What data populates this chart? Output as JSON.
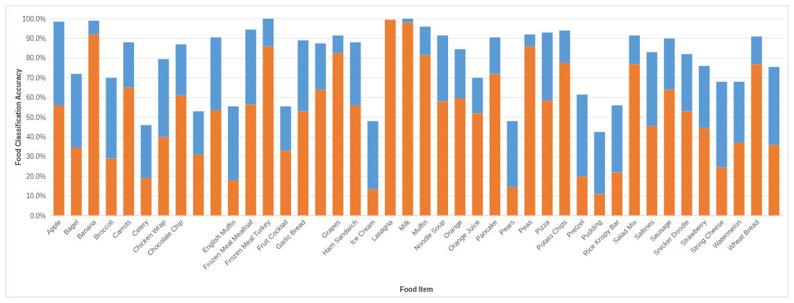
{
  "chart_data": {
    "type": "bar",
    "stacked": true,
    "xlabel": "Food Item",
    "ylabel": "Food Classification Accuracy",
    "categories": [
      "Apple",
      "Bagel",
      "Banana",
      "Broccoli",
      "Carrots",
      "Celery",
      "Chicken Wrap",
      "Chocolate Chip",
      null,
      null,
      "English Muffin",
      "Frozen Meal Meatloaf",
      "Frozen Meal Turkey",
      "Fruit Cocktail",
      "Garlic Bread",
      null,
      "Grapes",
      "Ham Sandwich",
      "Ice Cream",
      "Lasagna",
      "Milk",
      "Muffin",
      "Noodle Soup",
      "Orange",
      "Orange Juice",
      "Pancake",
      "Pears",
      "Peas",
      "Pizza",
      "Potato Chips",
      "Pretzel",
      "Pudding",
      "Rice Krispy Bar",
      "Salad Mix",
      "Saltines",
      "Sausage",
      "Snicker Doodle",
      "Strawberry",
      "String Cheese",
      "Watermelon",
      "Wheat Bread",
      null
    ],
    "series": [
      {
        "color": "#ed7d31",
        "values": [
          56,
          34.5,
          92,
          29,
          65,
          19,
          40,
          61,
          31,
          53.5,
          18,
          56.5,
          86,
          33,
          53,
          64,
          82.5,
          56,
          13.5,
          99.5,
          98,
          81.5,
          58,
          59.5,
          52,
          72,
          14.5,
          86,
          58.5,
          77.5,
          20,
          11,
          22,
          77,
          45.5,
          64,
          53,
          44.5,
          24.5,
          37,
          77,
          36
        ]
      },
      {
        "color": "#5b9bd5",
        "values": [
          42.5,
          37.5,
          7,
          41,
          23,
          27,
          39.5,
          26,
          22,
          37,
          37.5,
          38,
          14,
          22.5,
          36,
          23.5,
          9,
          32,
          34.5,
          0,
          2,
          14.5,
          33.5,
          25,
          18,
          18.5,
          33.5,
          6,
          34.5,
          16.5,
          41.5,
          31.5,
          34,
          14.5,
          37.5,
          26,
          29,
          31.5,
          43.5,
          31,
          14,
          39.5
        ]
      }
    ],
    "ylim": [
      0,
      100
    ],
    "yticks": [
      {
        "value": 0,
        "label": "0.0%"
      },
      {
        "value": 10,
        "label": "10.0%"
      },
      {
        "value": 20,
        "label": "20.0%"
      },
      {
        "value": 30,
        "label": "30.0%"
      },
      {
        "value": 40,
        "label": "40.0%"
      },
      {
        "value": 50,
        "label": "50.0%"
      },
      {
        "value": 60,
        "label": "60.0%"
      },
      {
        "value": 70,
        "label": "70.0%"
      },
      {
        "value": 80,
        "label": "80.0%"
      },
      {
        "value": 90,
        "label": "90.0%"
      },
      {
        "value": 100,
        "label": "100.0%"
      }
    ],
    "grid": "y"
  }
}
